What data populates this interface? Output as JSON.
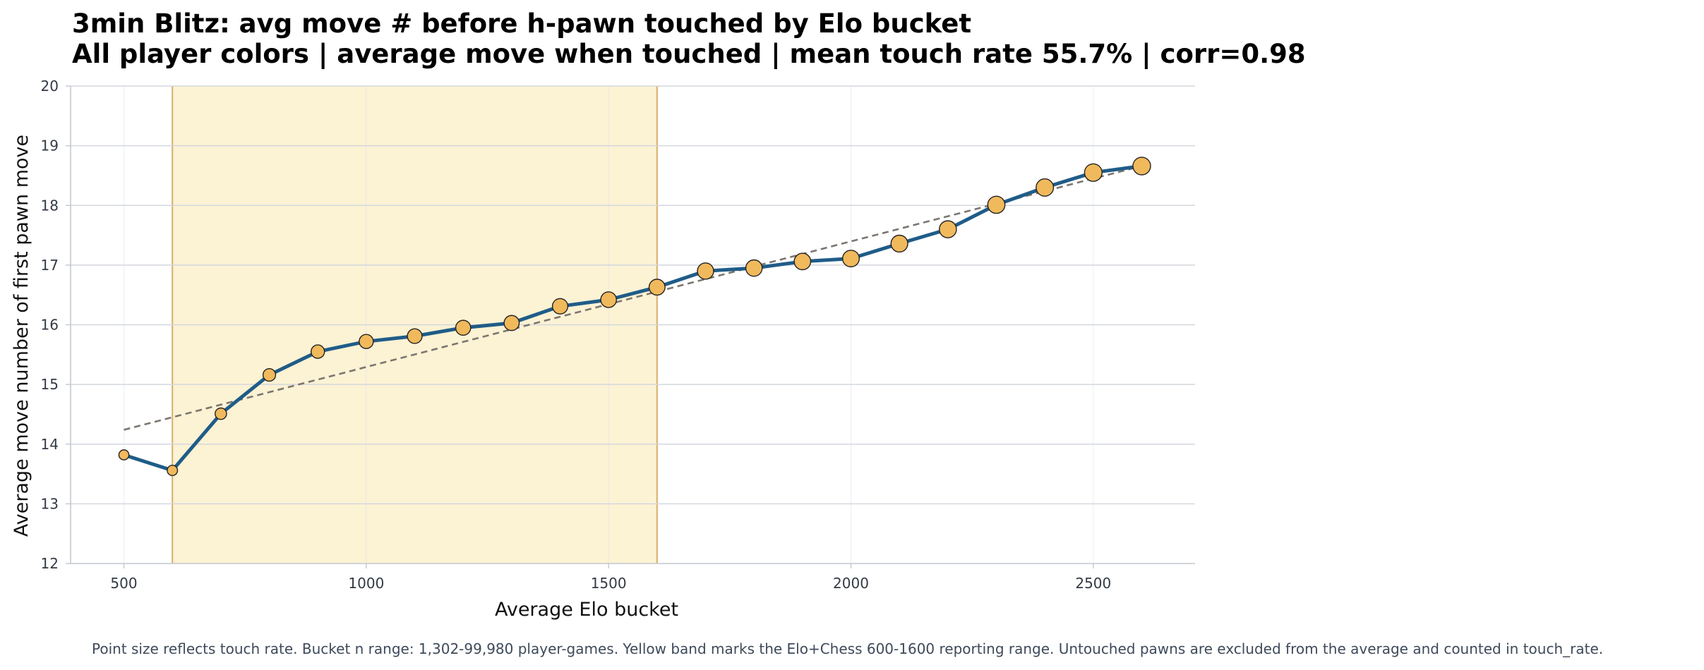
{
  "chart_data": {
    "type": "line",
    "title": "3min Blitz: avg move # before h-pawn touched by Elo bucket",
    "subtitle": "All player colors | average move when touched | mean touch rate 55.7% | corr=0.98",
    "xlabel": "Average Elo bucket",
    "ylabel": "Average move number of first pawn move",
    "footnote": "Point size reflects touch rate. Bucket n range: 1,302-99,980 player-games. Yellow band marks the Elo+Chess 600-1600 reporting range. Untouched pawns are excluded from the average and counted in touch_rate.",
    "xlim": [
      390,
      2710
    ],
    "ylim": [
      12,
      20
    ],
    "x_ticks": [
      500,
      1000,
      1500,
      2000,
      2500
    ],
    "x_tick_labels": [
      "500",
      "1000",
      "1500",
      "2000",
      "2500"
    ],
    "y_ticks": [
      12,
      13,
      14,
      15,
      16,
      17,
      18,
      19,
      20
    ],
    "y_tick_labels": [
      "12",
      "13",
      "14",
      "15",
      "16",
      "17",
      "18",
      "19",
      "20"
    ],
    "grid": true,
    "highlight_band": {
      "x_start": 600,
      "x_end": 1600,
      "color": "#fcf2d4",
      "edge_color": "#d9ae6a"
    },
    "line_color": "#1f5c88",
    "marker_color": "#f0b95c",
    "trend_color": "#7b7670",
    "x": [
      500,
      600,
      700,
      800,
      900,
      1000,
      1100,
      1200,
      1300,
      1400,
      1500,
      1600,
      1700,
      1800,
      1900,
      2000,
      2100,
      2200,
      2300,
      2400,
      2500,
      2600
    ],
    "values": [
      13.82,
      13.56,
      14.51,
      15.16,
      15.55,
      15.72,
      15.81,
      15.95,
      16.03,
      16.31,
      16.42,
      16.63,
      16.9,
      16.95,
      17.06,
      17.11,
      17.36,
      17.6,
      18.01,
      18.3,
      18.55,
      18.66
    ],
    "touch_rate": [
      0.26,
      0.28,
      0.36,
      0.44,
      0.5,
      0.55,
      0.59,
      0.61,
      0.62,
      0.64,
      0.66,
      0.68,
      0.7,
      0.71,
      0.72,
      0.73,
      0.74,
      0.76,
      0.77,
      0.78,
      0.79,
      0.8
    ],
    "trend": {
      "x": [
        500,
        2600
      ],
      "y": [
        14.24,
        18.66
      ]
    }
  }
}
